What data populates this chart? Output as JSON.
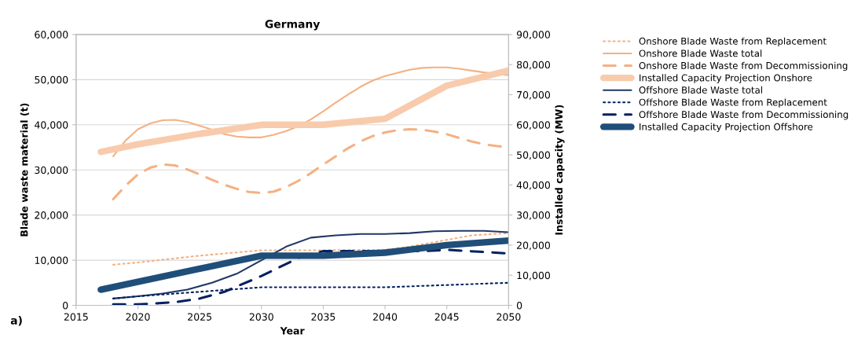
{
  "chart_data": {
    "type": "line",
    "title": "Germany",
    "xlabel": "Year",
    "ylabel": "Blade waste material (t)",
    "y2label": "Installed capacity (MW)",
    "xlim": [
      2015,
      2050
    ],
    "xticks": [
      2015,
      2020,
      2025,
      2030,
      2035,
      2040,
      2045,
      2050
    ],
    "ylim": [
      0,
      60000
    ],
    "yticks": [
      {
        "value": 0,
        "label": "0"
      },
      {
        "value": 10000,
        "label": "10,000"
      },
      {
        "value": 20000,
        "label": "20,000"
      },
      {
        "value": 30000,
        "label": "30,000"
      },
      {
        "value": 40000,
        "label": "40,000"
      },
      {
        "value": 50000,
        "label": "50,000"
      },
      {
        "value": 60000,
        "label": "60,000"
      }
    ],
    "y2lim": [
      0,
      90000
    ],
    "y2ticks": [
      {
        "value": 0,
        "label": "0"
      },
      {
        "value": 10000,
        "label": "10,000"
      },
      {
        "value": 20000,
        "label": "20,000"
      },
      {
        "value": 30000,
        "label": "30,000"
      },
      {
        "value": 40000,
        "label": "40,000"
      },
      {
        "value": 50000,
        "label": "50,000"
      },
      {
        "value": 60000,
        "label": "60,000"
      },
      {
        "value": 70000,
        "label": "70,000"
      },
      {
        "value": 80000,
        "label": "80,000"
      },
      {
        "value": 90000,
        "label": "90,000"
      }
    ],
    "grid": "y",
    "legend": "right",
    "annotations": [
      "a)"
    ],
    "series": [
      {
        "name": "Onshore Blade Waste from Replacement",
        "color": "#f4b183",
        "line_style": "dotted",
        "x": [
          2018,
          2020,
          2025,
          2030,
          2035,
          2040,
          2042,
          2045,
          2047,
          2050
        ],
        "values": [
          9000,
          9500,
          11000,
          12200,
          12200,
          12300,
          13000,
          14500,
          15500,
          16000
        ]
      },
      {
        "name": "Onshore Blade Waste total",
        "color": "#f4b183",
        "line_style": "solid",
        "x": [
          2018,
          2019,
          2020,
          2021,
          2022,
          2023,
          2024,
          2025,
          2026,
          2027,
          2028,
          2029,
          2030,
          2031,
          2032,
          2033,
          2034,
          2035,
          2036,
          2037,
          2038,
          2039,
          2040,
          2041,
          2042,
          2043,
          2044,
          2045,
          2046,
          2047,
          2048,
          2049,
          2050
        ],
        "values": [
          33000,
          36500,
          39000,
          40300,
          41000,
          41100,
          40600,
          39800,
          38900,
          37900,
          37400,
          37200,
          37200,
          37800,
          38600,
          39700,
          41200,
          43000,
          44900,
          46700,
          48400,
          49800,
          50800,
          51500,
          52200,
          52600,
          52700,
          52700,
          52400,
          52000,
          51600,
          51300,
          51000
        ]
      },
      {
        "name": "Onshore Blade Waste from Decommissioning",
        "color": "#f4b183",
        "line_style": "dashed",
        "x": [
          2018,
          2019,
          2020,
          2021,
          2022,
          2023,
          2024,
          2025,
          2026,
          2027,
          2028,
          2029,
          2030,
          2031,
          2032,
          2033,
          2034,
          2035,
          2036,
          2037,
          2038,
          2039,
          2040,
          2041,
          2042,
          2043,
          2044,
          2045,
          2046,
          2047,
          2048,
          2049,
          2050
        ],
        "values": [
          23500,
          26500,
          29000,
          30500,
          31200,
          31000,
          30100,
          29000,
          27800,
          26700,
          25800,
          25100,
          24900,
          25200,
          26200,
          27600,
          29300,
          31200,
          33000,
          34800,
          36300,
          37500,
          38300,
          38800,
          39000,
          38900,
          38500,
          37900,
          37100,
          36300,
          35700,
          35300,
          35000
        ]
      },
      {
        "name": "Installed Capacity Projection Onshore",
        "color": "#f8cbad",
        "line_style": "solid",
        "axis": "y2",
        "x": [
          2017,
          2020,
          2025,
          2030,
          2035,
          2040,
          2045,
          2050
        ],
        "values": [
          51000,
          53500,
          57000,
          60000,
          60000,
          62000,
          73000,
          78000
        ]
      },
      {
        "name": "Offshore Blade Waste total",
        "color": "#203864",
        "line_style": "solid",
        "x": [
          2018,
          2020,
          2022,
          2024,
          2026,
          2028,
          2030,
          2032,
          2034,
          2036,
          2038,
          2040,
          2042,
          2044,
          2046,
          2048,
          2050
        ],
        "values": [
          1500,
          2000,
          2600,
          3500,
          5000,
          7000,
          10000,
          13000,
          15000,
          15500,
          15800,
          15800,
          16000,
          16400,
          16500,
          16500,
          16200
        ]
      },
      {
        "name": "Offshore Blade Waste from Replacement",
        "color": "#002060",
        "line_style": "dotted",
        "x": [
          2018,
          2020,
          2025,
          2030,
          2035,
          2040,
          2045,
          2050
        ],
        "values": [
          1500,
          2000,
          3000,
          4000,
          4000,
          4000,
          4500,
          5000
        ]
      },
      {
        "name": "Offshore Blade Waste from Decommissioning",
        "color": "#002060",
        "line_style": "dashed",
        "x": [
          2018,
          2020,
          2023,
          2025,
          2027,
          2030,
          2033,
          2035,
          2040,
          2043,
          2045,
          2050
        ],
        "values": [
          200,
          200,
          700,
          1500,
          3000,
          6500,
          10500,
          12000,
          12000,
          12000,
          12300,
          11500
        ]
      },
      {
        "name": "Installed Capacity Projection Offshore",
        "color": "#1f4e79",
        "line_style": "solid",
        "axis": "y2",
        "x": [
          2017,
          2030,
          2035,
          2040,
          2045,
          2050
        ],
        "values": [
          5200,
          16500,
          16500,
          17500,
          20000,
          21500
        ]
      }
    ]
  }
}
